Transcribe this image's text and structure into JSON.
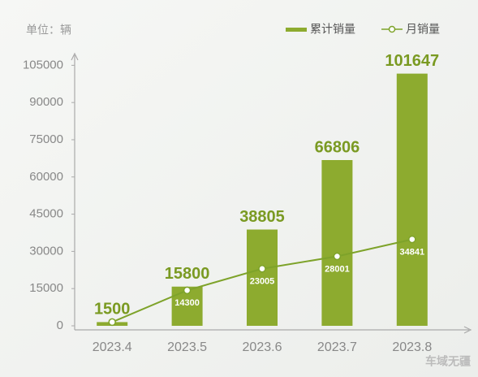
{
  "chart_data": {
    "type": "bar-line",
    "unit_label": "单位：辆",
    "watermark": "车域无疆",
    "categories": [
      "2023.4",
      "2023.5",
      "2023.6",
      "2023.7",
      "2023.8"
    ],
    "series": [
      {
        "name": "累计销量",
        "type": "bar",
        "color": "#8dab2f",
        "values": [
          1500,
          15800,
          38805,
          66806,
          101647
        ]
      },
      {
        "name": "月销量",
        "type": "line",
        "color": "#7ea32a",
        "values": [
          1500,
          14300,
          23005,
          28001,
          34841
        ],
        "value_labels": [
          null,
          "14300",
          "23005",
          "28001",
          "34841"
        ]
      }
    ],
    "ylim": [
      0,
      112000
    ],
    "yticks": [
      0,
      15000,
      30000,
      45000,
      60000,
      75000,
      90000,
      105000
    ],
    "grid": false
  }
}
